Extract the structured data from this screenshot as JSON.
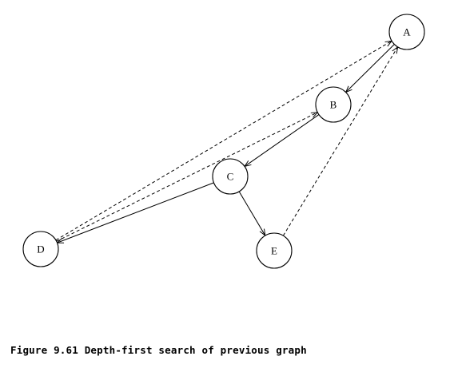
{
  "figure": {
    "caption": "Figure 9.61 Depth-first search of previous graph"
  },
  "graph": {
    "nodes": [
      {
        "id": "A",
        "label": "A"
      },
      {
        "id": "B",
        "label": "B"
      },
      {
        "id": "C",
        "label": "C"
      },
      {
        "id": "D",
        "label": "D"
      },
      {
        "id": "E",
        "label": "E"
      }
    ],
    "tree_edges": [
      {
        "from": "A",
        "to": "B"
      },
      {
        "from": "B",
        "to": "C"
      },
      {
        "from": "C",
        "to": "D"
      },
      {
        "from": "C",
        "to": "E"
      }
    ],
    "back_edges": [
      {
        "from": "D",
        "to": "A"
      },
      {
        "from": "D",
        "to": "B"
      },
      {
        "from": "E",
        "to": "A"
      }
    ]
  }
}
